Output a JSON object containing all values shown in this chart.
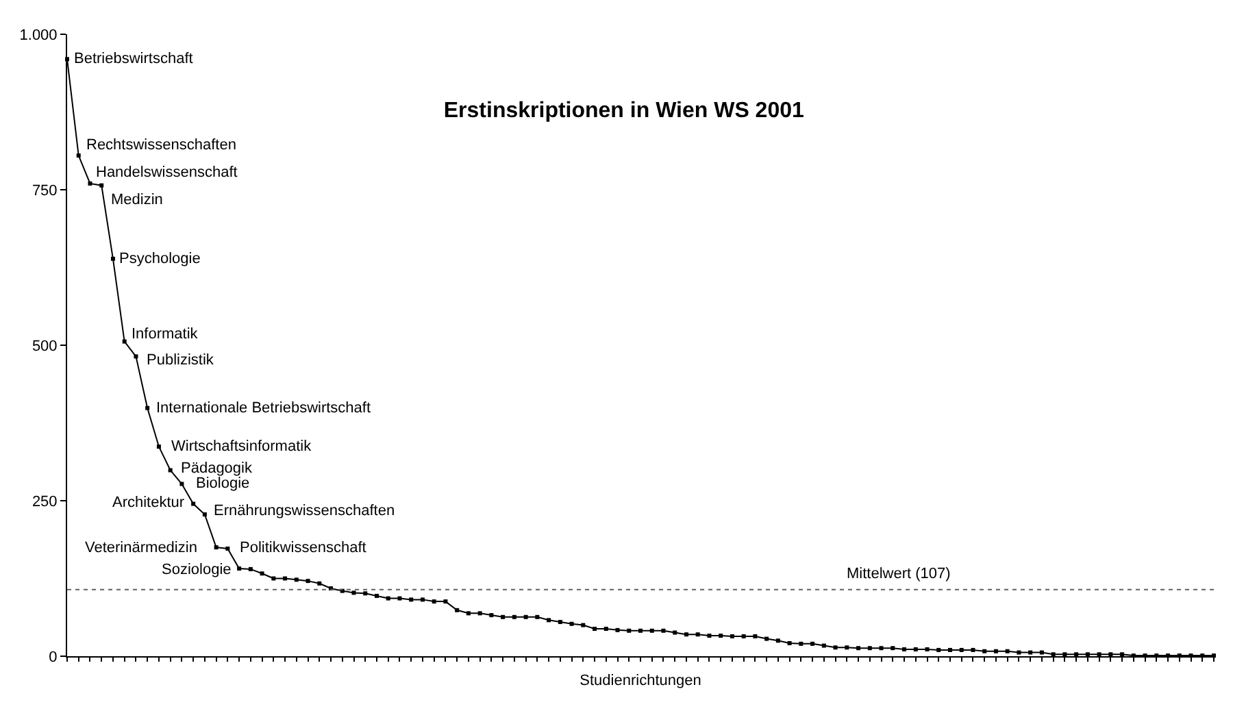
{
  "chart_data": {
    "type": "line",
    "title": "Erstinskriptionen in Wien WS 2001",
    "xlabel": "Studienrichtungen",
    "categories": [
      null,
      null,
      null,
      null,
      null,
      null,
      null,
      null,
      null,
      null,
      null,
      null,
      null,
      null,
      null,
      null,
      null,
      null,
      null,
      null,
      null,
      null,
      null,
      null,
      null,
      null,
      null,
      null,
      null,
      null,
      null,
      null,
      null,
      null,
      null,
      null,
      null,
      null,
      null,
      null,
      null,
      null,
      null,
      null,
      null,
      null,
      null,
      null,
      null,
      null,
      null,
      null,
      null,
      null,
      null,
      null,
      null,
      null,
      null,
      null,
      null,
      null,
      null,
      null,
      null,
      null,
      null,
      null,
      null,
      null,
      null,
      null,
      null,
      null,
      null,
      null,
      null,
      null,
      null,
      null,
      null,
      null,
      null,
      null,
      null,
      null,
      null,
      null,
      null,
      null,
      null,
      null,
      null,
      null,
      null,
      null,
      null,
      null,
      null,
      null,
      null
    ],
    "series": [
      {
        "color": "#000000",
        "values": [
          960,
          805,
          760,
          757,
          639,
          506,
          482,
          399,
          337,
          299,
          277,
          245,
          228,
          175,
          173,
          141,
          140,
          133,
          125,
          125,
          123,
          121,
          117,
          109,
          105,
          102,
          101,
          97,
          93,
          93,
          91,
          91,
          88,
          88,
          74,
          69,
          69,
          66,
          63,
          63,
          63,
          63,
          58,
          55,
          52,
          50,
          44,
          44,
          42,
          41,
          41,
          41,
          41,
          38,
          35,
          35,
          33,
          33,
          32,
          32,
          32,
          28,
          25,
          21,
          20,
          20,
          17,
          14,
          14,
          13,
          13,
          13,
          13,
          11,
          11,
          11,
          10,
          10,
          10,
          10,
          8,
          8,
          8,
          6,
          6,
          6,
          3,
          3,
          3,
          3,
          3,
          3,
          3,
          1,
          1,
          1,
          1,
          1,
          1,
          1,
          1
        ]
      }
    ],
    "ylim": [
      0,
      1000
    ],
    "yticks": [
      0,
      250,
      500,
      750,
      {
        "value": 1000,
        "label": "1.000"
      }
    ],
    "tick_labels": "y",
    "marker": "square",
    "line_style": "solid",
    "ref_lines": [
      {
        "axis": "y",
        "value": 107,
        "label": "Mittelwert (107)",
        "color": "#606060",
        "line_style": "dashed"
      }
    ],
    "annotations": [
      "Betriebswirtschaft",
      "Rechtswissenschaften",
      "Handelswissenschaft",
      "Medizin",
      "Psychologie",
      "Informatik",
      "Publizistik",
      "Internationale Betriebswirtschaft",
      "Wirtschaftsinformatik",
      "Pädagogik",
      "Biologie",
      "Architektur",
      "Ernährungswissenschaften",
      "Veterinärmedizin",
      "Politikwissenschaft",
      "Soziologie"
    ]
  }
}
